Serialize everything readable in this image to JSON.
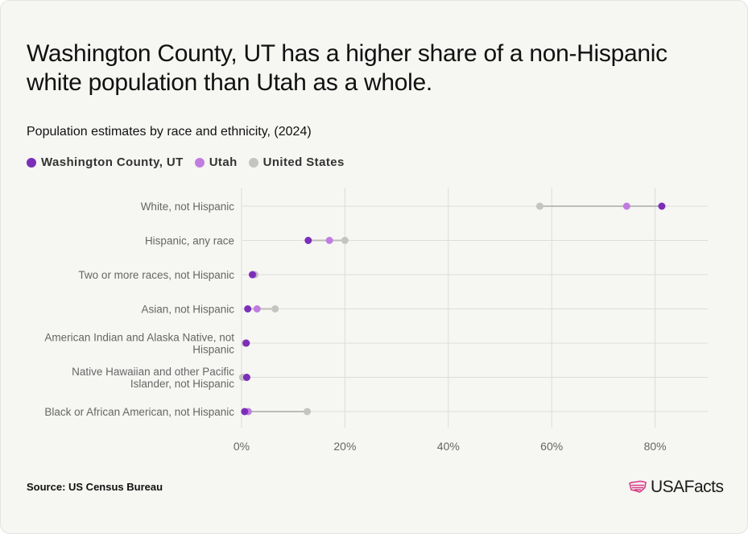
{
  "title": "Washington County, UT has a higher share of a non-Hispanic white population than Utah as a whole.",
  "subtitle": "Population estimates by race and ethnicity, (2024)",
  "source": "Source: US Census Bureau",
  "brand": {
    "name": "USAFacts",
    "icon": "us-flag-map-icon"
  },
  "colors": {
    "washington": "#7b2fb8",
    "utah": "#c07de0",
    "us": "#c4c4c0",
    "grid": "#dcdcd8",
    "tick": "#666666",
    "connector": "#bdbdb8"
  },
  "chart_data": {
    "type": "dot-plot",
    "categories": [
      [
        "White, not Hispanic"
      ],
      [
        "Hispanic, any race"
      ],
      [
        "Two or more races, not Hispanic"
      ],
      [
        "Asian, not Hispanic"
      ],
      [
        "American Indian and Alaska Native, not",
        "Hispanic"
      ],
      [
        "Native Hawaiian and other Pacific",
        "Islander, not Hispanic"
      ],
      [
        "Black or African American, not Hispanic"
      ]
    ],
    "series": [
      {
        "name": "Washington County, UT",
        "color": "#7b2fb8",
        "values": [
          81.3,
          12.9,
          2.1,
          1.2,
          0.9,
          1.0,
          0.6
        ]
      },
      {
        "name": "Utah",
        "color": "#c07de0",
        "values": [
          74.5,
          17.0,
          2.2,
          3.0,
          0.9,
          1.0,
          1.3
        ]
      },
      {
        "name": "United States",
        "color": "#c4c4c0",
        "values": [
          57.7,
          20.0,
          2.6,
          6.5,
          0.7,
          0.2,
          12.7
        ]
      }
    ],
    "x_ticks": [
      "0%",
      "20%",
      "40%",
      "60%",
      "80%"
    ],
    "x_tick_values": [
      0,
      20,
      40,
      60,
      80
    ],
    "xlim": [
      0,
      90
    ],
    "grid": true,
    "legend": "top-left"
  }
}
